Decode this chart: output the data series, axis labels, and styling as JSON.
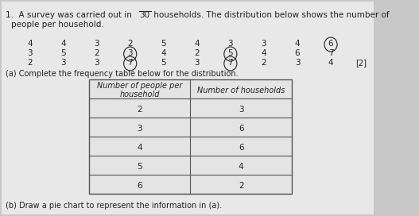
{
  "title_line1": "1.  A survey was carried out in 30 households. The distribution below shows the number of",
  "title_line2": "people per household.",
  "numbers_row1": [
    4,
    4,
    3,
    2,
    5,
    4,
    3,
    3,
    4,
    6
  ],
  "numbers_row2": [
    3,
    5,
    2,
    3,
    4,
    2,
    5,
    4,
    6,
    7
  ],
  "numbers_row3": [
    2,
    3,
    3,
    7,
    5,
    3,
    7,
    2,
    3,
    4
  ],
  "circled_row1": [
    9
  ],
  "circled_row2": [
    3,
    6
  ],
  "circled_row3": [
    3,
    6
  ],
  "table_rows": [
    [
      2,
      3
    ],
    [
      3,
      6
    ],
    [
      4,
      6
    ],
    [
      5,
      4
    ],
    [
      6,
      2
    ]
  ],
  "question_a": "(a) Complete the frequency table below for the distribution.",
  "question_b": "(b) Draw a pie chart to represent the information in (a).",
  "mark": "[2]",
  "bg_color": "#c8c8c8",
  "page_color": "#e8e8e8",
  "text_color": "#222222",
  "table_bg": "#e0e0e0",
  "table_border": "#555555",
  "font_size_title": 7.5,
  "font_size_body": 7.0,
  "font_size_numbers": 7.5,
  "font_size_table": 7.5
}
